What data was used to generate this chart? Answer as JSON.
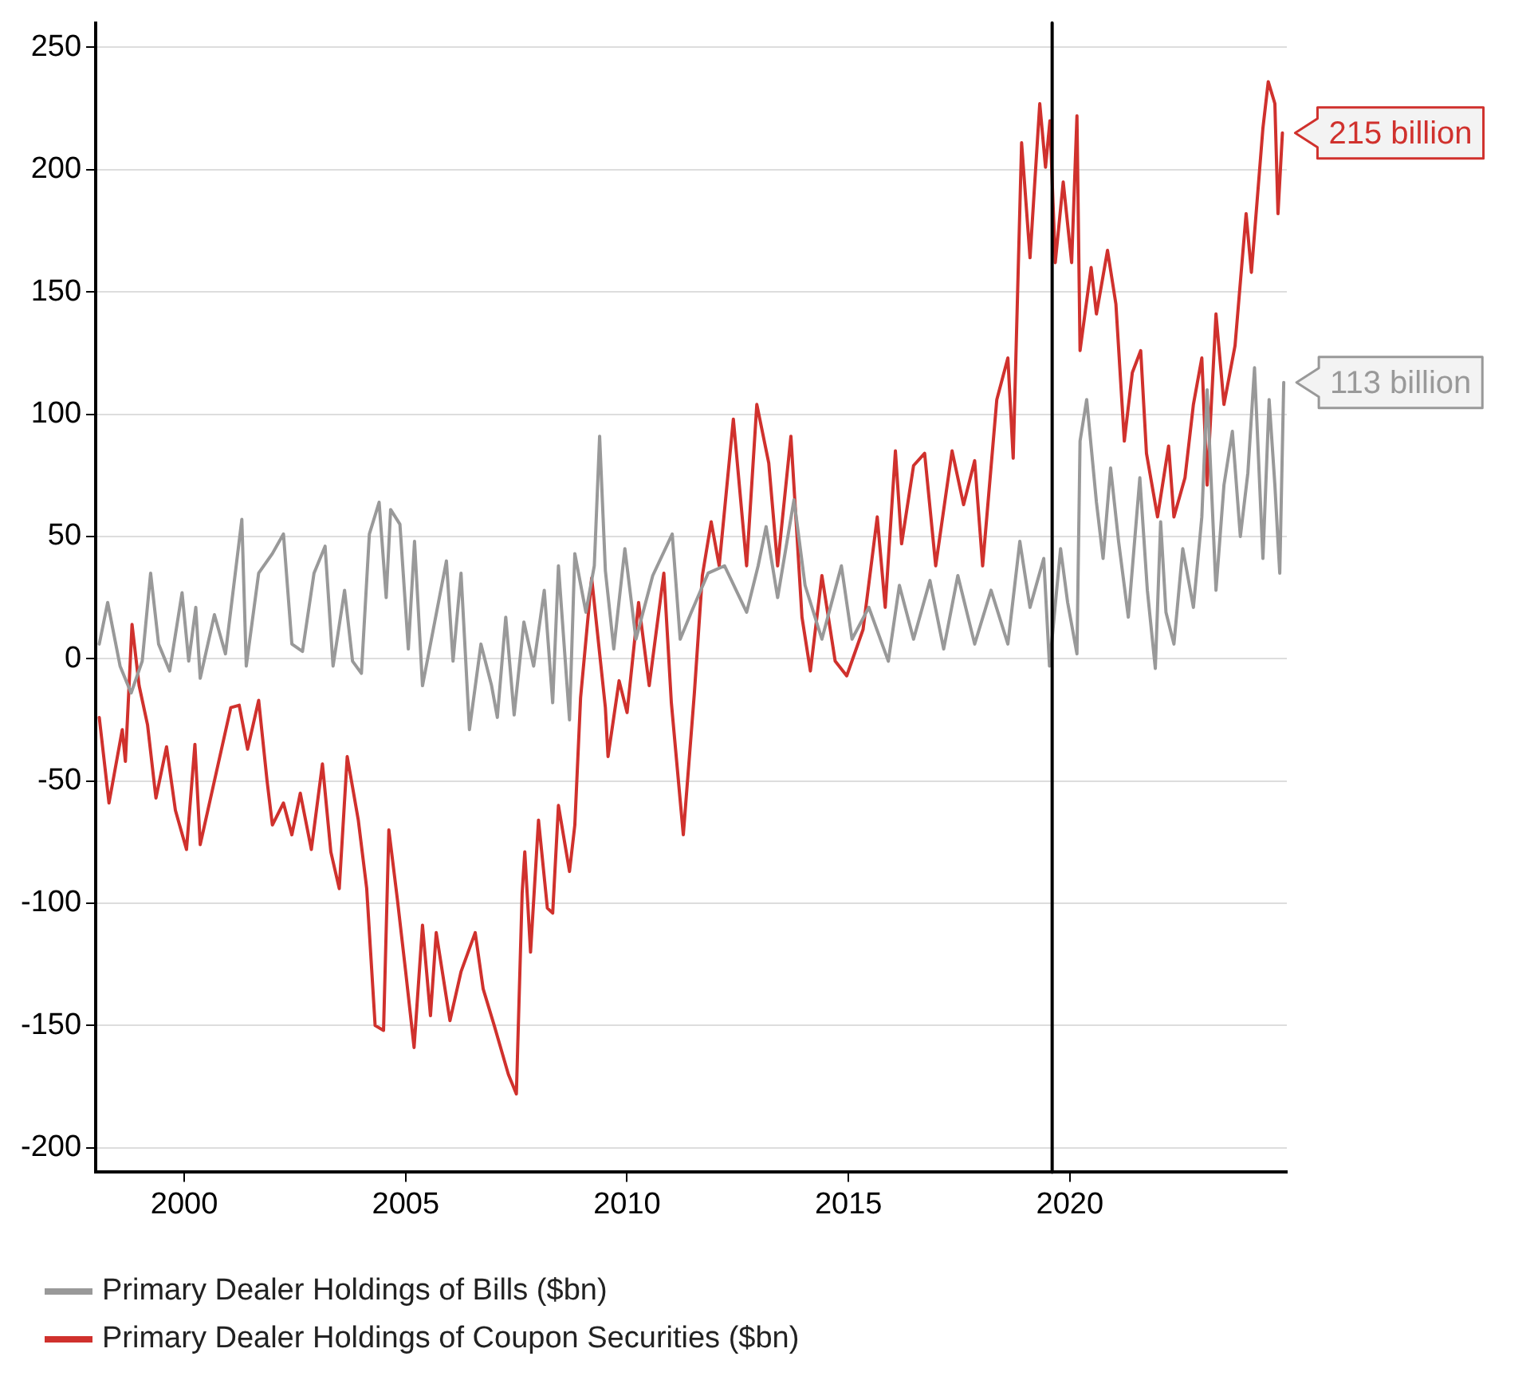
{
  "chart_data": {
    "type": "line",
    "xlim": [
      1998,
      2024.9
    ],
    "xticks": [
      2000,
      2005,
      2010,
      2015,
      2020
    ],
    "ylim": [
      -210,
      260
    ],
    "yticks": [
      -200,
      -150,
      -100,
      -50,
      0,
      50,
      100,
      150,
      200,
      250
    ],
    "grid": "y",
    "legend": "bottom",
    "marker": "none",
    "line_style": "solid",
    "ref_lines": [
      {
        "axis": "x",
        "value": 2019.6,
        "color": "#000000"
      }
    ],
    "annotations": [
      {
        "text": "215 billion",
        "x": 2024.8,
        "y": 215
      },
      {
        "text": "113 billion",
        "x": 2024.83,
        "y": 113
      }
    ],
    "series": [
      {
        "name": "Primary Dealer Holdings of Bills ($bn)",
        "color": "#999999",
        "x": [
          1998.08,
          1998.27,
          1998.55,
          1998.8,
          1999.05,
          1999.24,
          1999.42,
          1999.67,
          1999.95,
          2000.1,
          2000.26,
          2000.36,
          2000.68,
          2000.93,
          2001.3,
          2001.4,
          2001.68,
          2001.99,
          2002.24,
          2002.43,
          2002.67,
          2002.93,
          2003.18,
          2003.36,
          2003.62,
          2003.8,
          2004.0,
          2004.18,
          2004.4,
          2004.56,
          2004.66,
          2004.87,
          2005.06,
          2005.2,
          2005.38,
          2005.56,
          2005.92,
          2006.07,
          2006.25,
          2006.44,
          2006.7,
          2006.94,
          2007.07,
          2007.26,
          2007.45,
          2007.67,
          2007.89,
          2008.13,
          2008.32,
          2008.45,
          2008.7,
          2008.82,
          2009.07,
          2009.26,
          2009.38,
          2009.51,
          2009.7,
          2009.95,
          2010.2,
          2010.58,
          2011.02,
          2011.2,
          2011.45,
          2011.83,
          2012.2,
          2012.7,
          2012.96,
          2013.14,
          2013.4,
          2013.77,
          2014.02,
          2014.4,
          2014.84,
          2015.08,
          2015.46,
          2015.9,
          2016.15,
          2016.47,
          2016.84,
          2017.15,
          2017.47,
          2017.85,
          2018.22,
          2018.6,
          2018.87,
          2019.1,
          2019.41,
          2019.54,
          2019.79,
          2019.95,
          2020.16,
          2020.23,
          2020.38,
          2020.6,
          2020.75,
          2020.92,
          2021.1,
          2021.32,
          2021.58,
          2021.75,
          2021.93,
          2022.05,
          2022.17,
          2022.35,
          2022.55,
          2022.79,
          2022.98,
          2023.1,
          2023.3,
          2023.48,
          2023.67,
          2023.85,
          2024.02,
          2024.17,
          2024.36,
          2024.5,
          2024.63,
          2024.74,
          2024.83
        ],
        "values": [
          6,
          23,
          -3,
          -14,
          -1,
          35,
          6,
          -5,
          27,
          -1,
          21,
          -8,
          18,
          2,
          57,
          -3,
          35,
          43,
          51,
          6,
          3,
          35,
          46,
          -3,
          28,
          -1,
          -6,
          51,
          64,
          25,
          61,
          55,
          4,
          48,
          -11,
          6,
          40,
          -1,
          35,
          -29,
          6,
          -11,
          -24,
          17,
          -23,
          15,
          -3,
          28,
          -18,
          38,
          -25,
          43,
          19,
          38,
          91,
          36,
          4,
          45,
          8,
          34,
          51,
          8,
          19,
          35,
          38,
          19,
          38,
          54,
          25,
          65,
          30,
          8,
          38,
          8,
          21,
          -1,
          30,
          8,
          32,
          4,
          34,
          6,
          28,
          6,
          48,
          21,
          41,
          -3,
          45,
          23,
          2,
          89,
          106,
          64,
          41,
          78,
          48,
          17,
          74,
          28,
          -4,
          56,
          19,
          6,
          45,
          21,
          58,
          110,
          28,
          71,
          93,
          50,
          76,
          119,
          41,
          106,
          71,
          35,
          113
        ]
      },
      {
        "name": "Primary Dealer Holdings of Coupon Securities ($bn)",
        "color": "#d0312d",
        "x": [
          1998.08,
          1998.3,
          1998.6,
          1998.67,
          1998.82,
          1998.98,
          1999.17,
          1999.36,
          1999.6,
          1999.8,
          2000.05,
          2000.24,
          2000.36,
          2000.68,
          2001.05,
          2001.24,
          2001.43,
          2001.68,
          2001.87,
          2001.99,
          2002.24,
          2002.43,
          2002.62,
          2002.87,
          2003.12,
          2003.31,
          2003.5,
          2003.68,
          2003.93,
          2004.12,
          2004.31,
          2004.5,
          2004.62,
          2004.81,
          2005.0,
          2005.19,
          2005.38,
          2005.56,
          2005.69,
          2006.0,
          2006.25,
          2006.57,
          2006.75,
          2007.0,
          2007.32,
          2007.5,
          2007.63,
          2007.69,
          2007.82,
          2008.0,
          2008.2,
          2008.32,
          2008.45,
          2008.7,
          2008.82,
          2008.95,
          2009.2,
          2009.51,
          2009.57,
          2009.82,
          2010.0,
          2010.26,
          2010.5,
          2010.83,
          2011.0,
          2011.27,
          2011.52,
          2011.7,
          2011.9,
          2012.08,
          2012.4,
          2012.7,
          2012.93,
          2013.2,
          2013.4,
          2013.7,
          2013.95,
          2014.14,
          2014.4,
          2014.7,
          2014.96,
          2015.33,
          2015.65,
          2015.83,
          2016.06,
          2016.2,
          2016.47,
          2016.72,
          2016.97,
          2017.34,
          2017.6,
          2017.85,
          2018.03,
          2018.35,
          2018.6,
          2018.72,
          2018.91,
          2019.1,
          2019.32,
          2019.45,
          2019.55,
          2019.67,
          2019.85,
          2020.04,
          2020.16,
          2020.23,
          2020.48,
          2020.6,
          2020.85,
          2021.04,
          2021.23,
          2021.41,
          2021.6,
          2021.73,
          2021.98,
          2022.23,
          2022.35,
          2022.6,
          2022.79,
          2022.98,
          2023.1,
          2023.3,
          2023.48,
          2023.73,
          2023.98,
          2024.1,
          2024.36,
          2024.48,
          2024.63,
          2024.7,
          2024.8
        ],
        "values": [
          -24,
          -59,
          -29,
          -42,
          14,
          -11,
          -27,
          -57,
          -36,
          -62,
          -78,
          -35,
          -76,
          -50,
          -20,
          -19,
          -37,
          -17,
          -50,
          -68,
          -59,
          -72,
          -55,
          -78,
          -43,
          -79,
          -94,
          -40,
          -66,
          -94,
          -150,
          -152,
          -70,
          -98,
          -128,
          -159,
          -109,
          -146,
          -112,
          -148,
          -128,
          -112,
          -135,
          -150,
          -170,
          -178,
          -96,
          -79,
          -120,
          -66,
          -102,
          -104,
          -60,
          -87,
          -68,
          -16,
          33,
          -20,
          -40,
          -9,
          -22,
          23,
          -11,
          35,
          -18,
          -72,
          -14,
          34,
          56,
          38,
          98,
          38,
          104,
          80,
          38,
          91,
          17,
          -5,
          34,
          -1,
          -7,
          12,
          58,
          21,
          85,
          47,
          79,
          84,
          38,
          85,
          63,
          81,
          38,
          106,
          123,
          82,
          211,
          164,
          227,
          201,
          220,
          162,
          195,
          162,
          222,
          126,
          160,
          141,
          167,
          145,
          89,
          117,
          126,
          84,
          58,
          87,
          58,
          74,
          104,
          123,
          71,
          141,
          104,
          128,
          182,
          158,
          217,
          236,
          227,
          182,
          215
        ]
      }
    ]
  }
}
